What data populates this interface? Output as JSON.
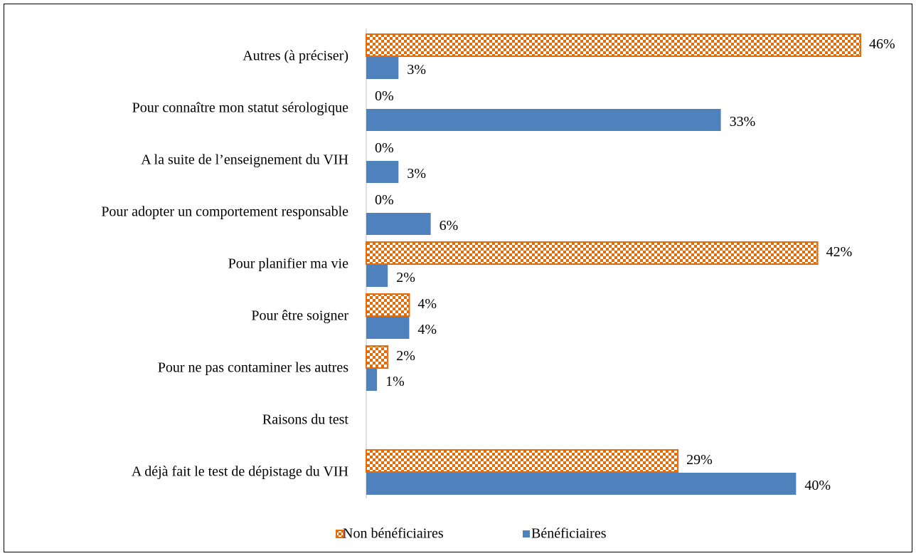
{
  "chart_data": {
    "type": "hbar",
    "categories": [
      "Autres (à préciser)",
      "Pour connaître mon statut sérologique",
      "A la suite de l’enseignement du VIH",
      "Pour adopter un comportement responsable",
      "Pour planifier ma vie",
      "Pour être soigner",
      "Pour ne pas contaminer les autres",
      "Raisons du test",
      "A déjà fait le test de dépistage du VIH"
    ],
    "series": [
      {
        "name": "Non bénéficiaires",
        "color": "#e36c0a",
        "pattern": "checkerboard",
        "values": [
          46,
          0,
          0,
          0,
          42,
          4,
          2,
          null,
          29
        ],
        "value_labels": [
          "46%",
          "0%",
          "0%",
          "0%",
          "42%",
          "4%",
          "2%",
          null,
          "29%"
        ]
      },
      {
        "name": "Bénéficiaires",
        "color": "#4f81bd",
        "values": [
          3,
          33,
          3,
          6,
          2,
          4,
          1,
          null,
          40
        ],
        "value_labels": [
          "3%",
          "33%",
          "3%",
          "6%",
          "2%",
          "4%",
          "1%",
          null,
          "40%"
        ]
      }
    ],
    "legend": "bottom"
  }
}
